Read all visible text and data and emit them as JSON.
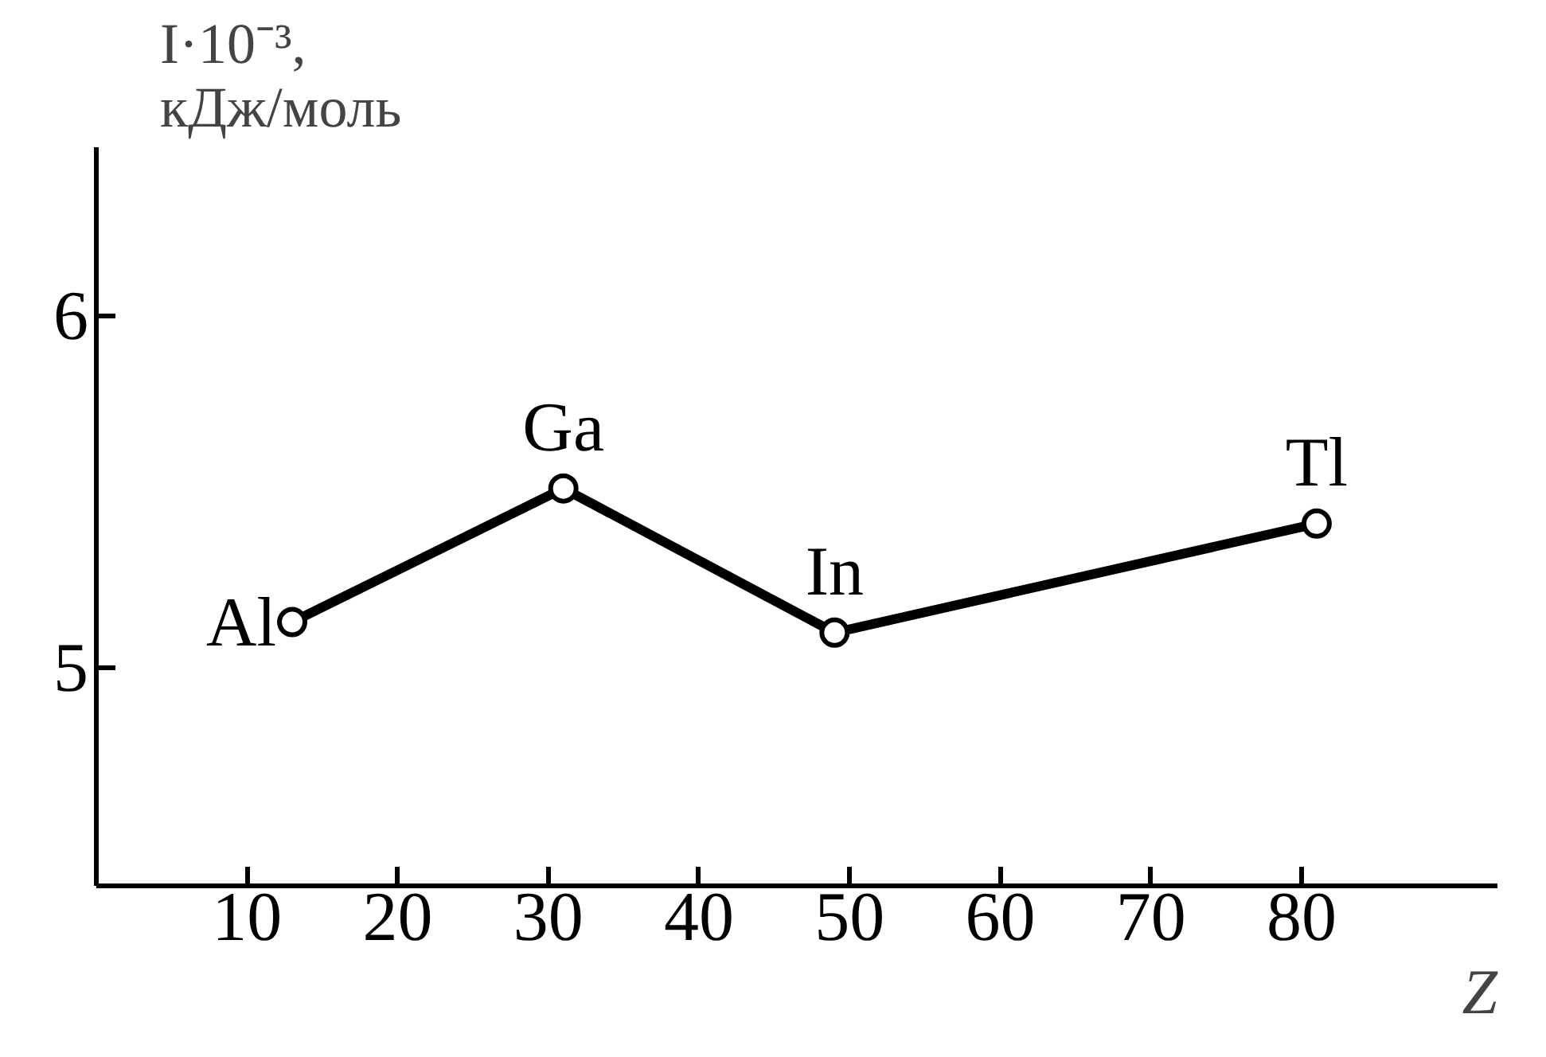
{
  "chart_data": {
    "type": "line",
    "ylabel": "I·10⁻³,\nкДж/моль",
    "xlabel": "Z",
    "x": [
      13,
      31,
      49,
      81
    ],
    "series": [
      {
        "color": "#000000",
        "values": [
          5.13,
          5.51,
          5.1,
          5.41
        ]
      }
    ],
    "annotations": [
      {
        "text": "Al",
        "x": 13,
        "y": 5.13
      },
      {
        "text": "Ga",
        "x": 31,
        "y": 5.51
      },
      {
        "text": "In",
        "x": 49,
        "y": 5.1
      },
      {
        "text": "Tl",
        "x": 81,
        "y": 5.41
      }
    ],
    "xlim": [
      0,
      93
    ],
    "ylim": [
      4.38,
      6.48
    ],
    "xticks": [
      10,
      20,
      30,
      40,
      50,
      60,
      70,
      80
    ],
    "yticks": [
      5,
      6
    ],
    "grid": false,
    "marker": "circle",
    "line_style": "solid"
  }
}
